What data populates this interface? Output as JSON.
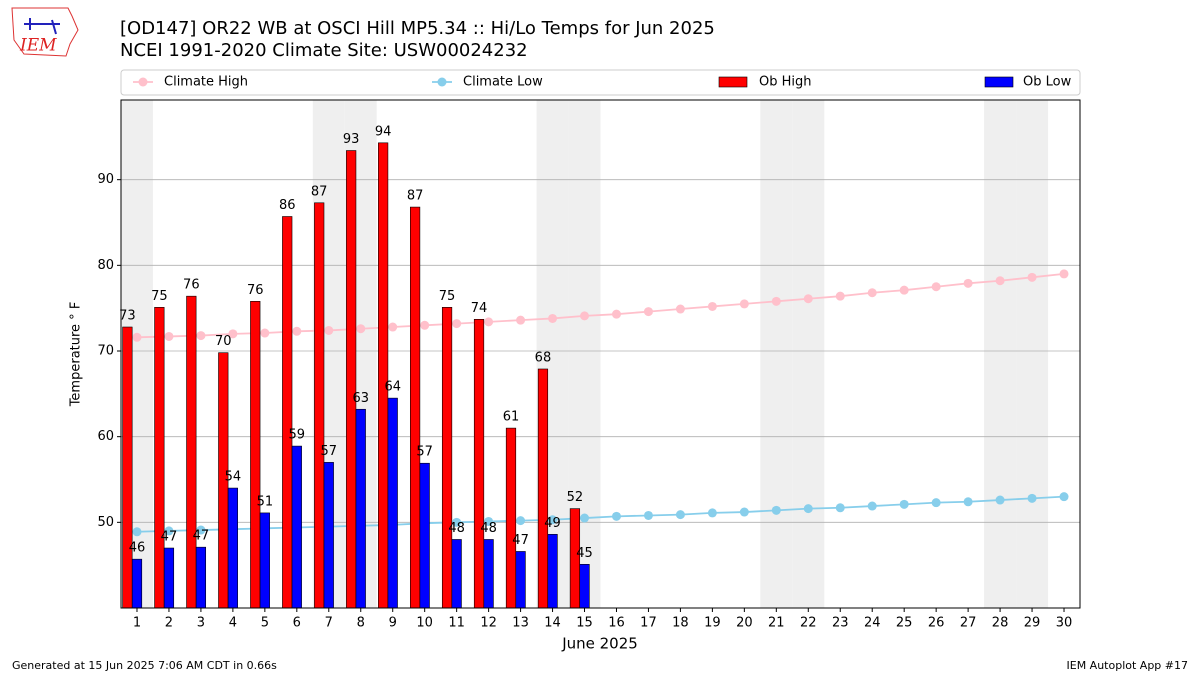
{
  "chart_data": {
    "type": "bar",
    "title": "[OD147] OR22 WB at OSCI Hill MP5.34  :: Hi/Lo Temps for Jun 2025",
    "subtitle": "NCEI 1991-2020 Climate Site: USW00024232",
    "logo": "IEM",
    "xlabel": "June 2025",
    "ylabel": "Temperature ° F",
    "footer_left": "Generated at 15 Jun 2025 7:06 AM CDT in 0.66s",
    "footer_right": "IEM Autoplot App #17",
    "x": [
      1,
      2,
      3,
      4,
      5,
      6,
      7,
      8,
      9,
      10,
      11,
      12,
      13,
      14,
      15,
      16,
      17,
      18,
      19,
      20,
      21,
      22,
      23,
      24,
      25,
      26,
      27,
      28,
      29,
      30
    ],
    "xlim": [
      0.5,
      30.5
    ],
    "ylim": [
      40,
      99.3
    ],
    "yticks": [
      50,
      60,
      70,
      80,
      90
    ],
    "grid": true,
    "legend": "top",
    "shaded_days": [
      1,
      7,
      8,
      14,
      15,
      21,
      22,
      28,
      29
    ],
    "shade_color": "#efefef",
    "series": [
      {
        "name": "Climate High",
        "kind": "line",
        "color": "#ffc0cb",
        "values": [
          71.6,
          71.7,
          71.8,
          72.0,
          72.1,
          72.3,
          72.4,
          72.6,
          72.8,
          73.0,
          73.2,
          73.4,
          73.6,
          73.8,
          74.1,
          74.3,
          74.6,
          74.9,
          75.2,
          75.5,
          75.8,
          76.1,
          76.4,
          76.8,
          77.1,
          77.5,
          77.9,
          78.2,
          78.6,
          79.0
        ]
      },
      {
        "name": "Climate Low",
        "kind": "line",
        "color": "#87ceeb",
        "values": [
          48.9,
          49.0,
          49.1,
          49.2,
          49.3,
          49.4,
          49.5,
          49.6,
          49.7,
          49.9,
          50.0,
          50.1,
          50.2,
          50.3,
          50.5,
          50.7,
          50.8,
          50.9,
          51.1,
          51.2,
          51.4,
          51.6,
          51.7,
          51.9,
          52.1,
          52.3,
          52.4,
          52.6,
          52.8,
          53.0
        ]
      },
      {
        "name": "Ob High",
        "kind": "bar",
        "color": "#ff0000",
        "values": [
          72.8,
          75.1,
          76.4,
          69.8,
          75.8,
          85.7,
          87.3,
          93.4,
          94.3,
          86.8,
          75.1,
          73.7,
          61.0,
          67.9,
          51.6,
          null,
          null,
          null,
          null,
          null,
          null,
          null,
          null,
          null,
          null,
          null,
          null,
          null,
          null,
          null
        ],
        "value_labels": [
          "73",
          "75",
          "76",
          "70",
          "76",
          "86",
          "87",
          "93",
          "94",
          "87",
          "75",
          "74",
          "61",
          "68",
          "52",
          null,
          null,
          null,
          null,
          null,
          null,
          null,
          null,
          null,
          null,
          null,
          null,
          null,
          null,
          null
        ]
      },
      {
        "name": "Ob Low",
        "kind": "bar",
        "color": "#0000ff",
        "values": [
          45.7,
          47.0,
          47.1,
          54.0,
          51.1,
          58.9,
          57.0,
          63.2,
          64.5,
          56.9,
          48.0,
          48.0,
          46.6,
          48.6,
          45.1,
          null,
          null,
          null,
          null,
          null,
          null,
          null,
          null,
          null,
          null,
          null,
          null,
          null,
          null,
          null
        ],
        "value_labels": [
          "46",
          "47",
          "47",
          "54",
          "51",
          "59",
          "57",
          "63",
          "64",
          "57",
          "48",
          "48",
          "47",
          "49",
          "45",
          null,
          null,
          null,
          null,
          null,
          null,
          null,
          null,
          null,
          null,
          null,
          null,
          null,
          null,
          null
        ]
      }
    ]
  }
}
